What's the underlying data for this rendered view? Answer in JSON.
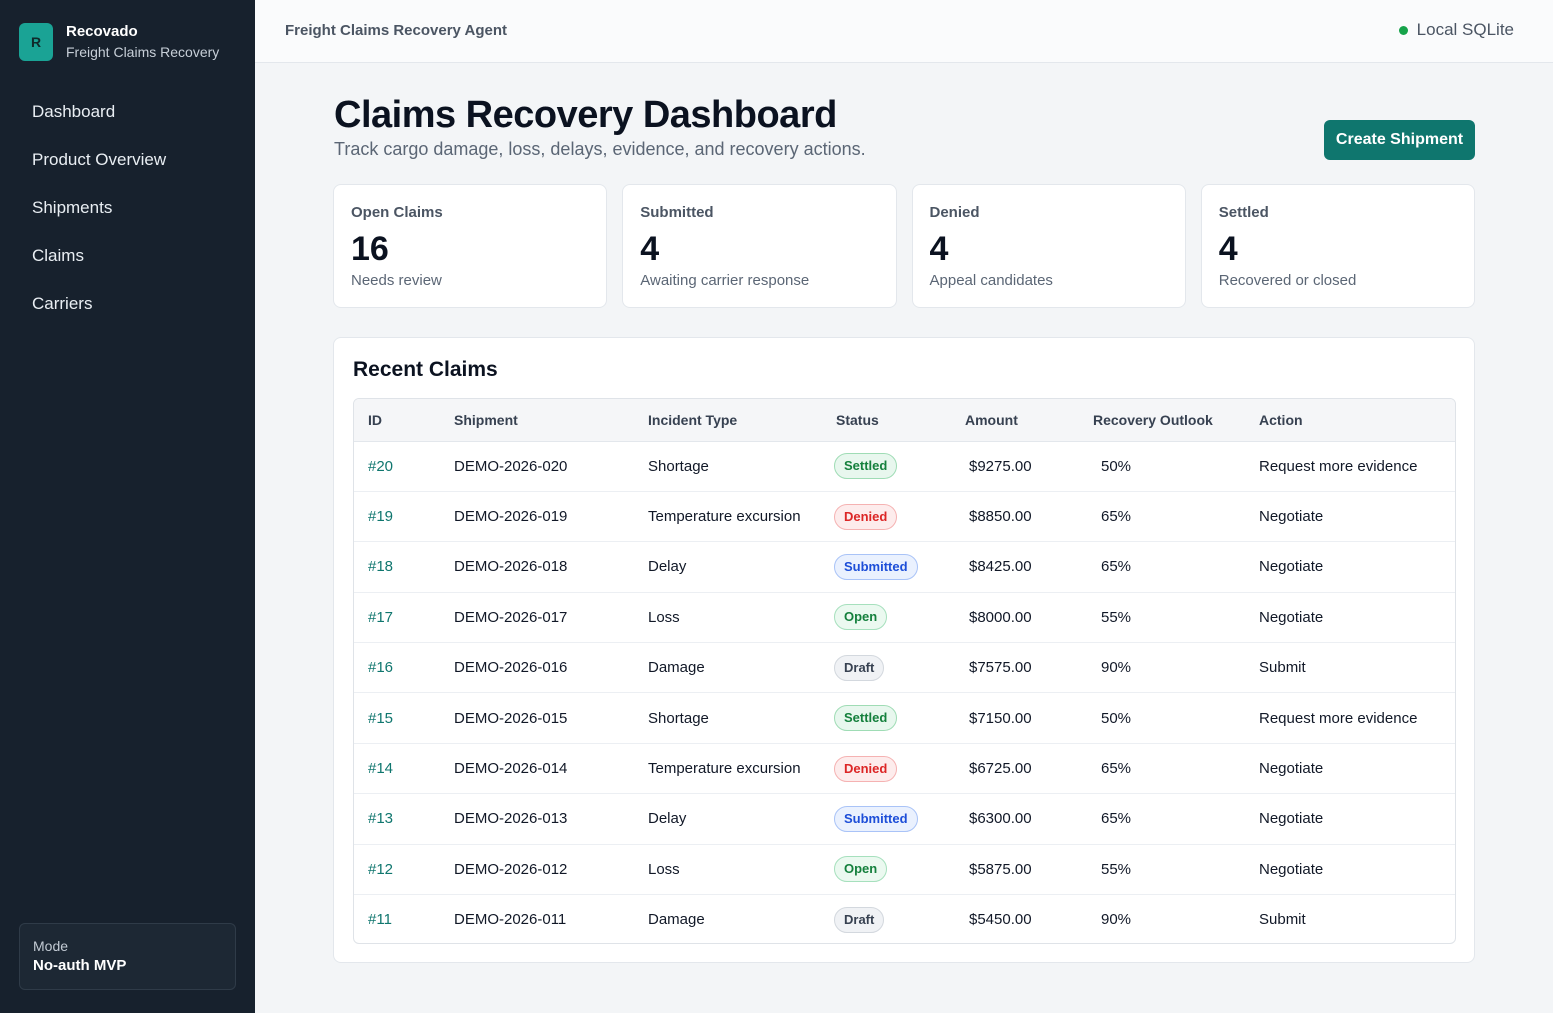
{
  "brand": {
    "logo_letter": "R",
    "name": "Recovado",
    "subtitle": "Freight Claims Recovery"
  },
  "nav": {
    "items": [
      {
        "label": "Dashboard"
      },
      {
        "label": "Product Overview"
      },
      {
        "label": "Shipments"
      },
      {
        "label": "Claims"
      },
      {
        "label": "Carriers"
      }
    ]
  },
  "mode": {
    "label": "Mode",
    "value": "No-auth MVP"
  },
  "topbar": {
    "title": "Freight Claims Recovery Agent",
    "db_status": "Local SQLite",
    "db_status_color": "#16a34a"
  },
  "header": {
    "title": "Claims Recovery Dashboard",
    "subtitle": "Track cargo damage, loss, delays, evidence, and recovery actions.",
    "create_button": "Create Shipment"
  },
  "stats": [
    {
      "label": "Open Claims",
      "value": "16",
      "note": "Needs review"
    },
    {
      "label": "Submitted",
      "value": "4",
      "note": "Awaiting carrier response"
    },
    {
      "label": "Denied",
      "value": "4",
      "note": "Appeal candidates"
    },
    {
      "label": "Settled",
      "value": "4",
      "note": "Recovered or closed"
    }
  ],
  "recent": {
    "title": "Recent Claims",
    "columns": [
      "ID",
      "Shipment",
      "Incident Type",
      "Status",
      "Amount",
      "Recovery Outlook",
      "Action"
    ],
    "rows": [
      {
        "id": "#20",
        "shipment": "DEMO-2026-020",
        "incident": "Shortage",
        "status": "Settled",
        "amount": "$9275.00",
        "outlook": "50%",
        "action": "Request more evidence"
      },
      {
        "id": "#19",
        "shipment": "DEMO-2026-019",
        "incident": "Temperature excursion",
        "status": "Denied",
        "amount": "$8850.00",
        "outlook": "65%",
        "action": "Negotiate"
      },
      {
        "id": "#18",
        "shipment": "DEMO-2026-018",
        "incident": "Delay",
        "status": "Submitted",
        "amount": "$8425.00",
        "outlook": "65%",
        "action": "Negotiate"
      },
      {
        "id": "#17",
        "shipment": "DEMO-2026-017",
        "incident": "Loss",
        "status": "Open",
        "amount": "$8000.00",
        "outlook": "55%",
        "action": "Negotiate"
      },
      {
        "id": "#16",
        "shipment": "DEMO-2026-016",
        "incident": "Damage",
        "status": "Draft",
        "amount": "$7575.00",
        "outlook": "90%",
        "action": "Submit"
      },
      {
        "id": "#15",
        "shipment": "DEMO-2026-015",
        "incident": "Shortage",
        "status": "Settled",
        "amount": "$7150.00",
        "outlook": "50%",
        "action": "Request more evidence"
      },
      {
        "id": "#14",
        "shipment": "DEMO-2026-014",
        "incident": "Temperature excursion",
        "status": "Denied",
        "amount": "$6725.00",
        "outlook": "65%",
        "action": "Negotiate"
      },
      {
        "id": "#13",
        "shipment": "DEMO-2026-013",
        "incident": "Delay",
        "status": "Submitted",
        "amount": "$6300.00",
        "outlook": "65%",
        "action": "Negotiate"
      },
      {
        "id": "#12",
        "shipment": "DEMO-2026-012",
        "incident": "Loss",
        "status": "Open",
        "amount": "$5875.00",
        "outlook": "55%",
        "action": "Negotiate"
      },
      {
        "id": "#11",
        "shipment": "DEMO-2026-011",
        "incident": "Damage",
        "status": "Draft",
        "amount": "$5450.00",
        "outlook": "90%",
        "action": "Submit"
      }
    ]
  }
}
